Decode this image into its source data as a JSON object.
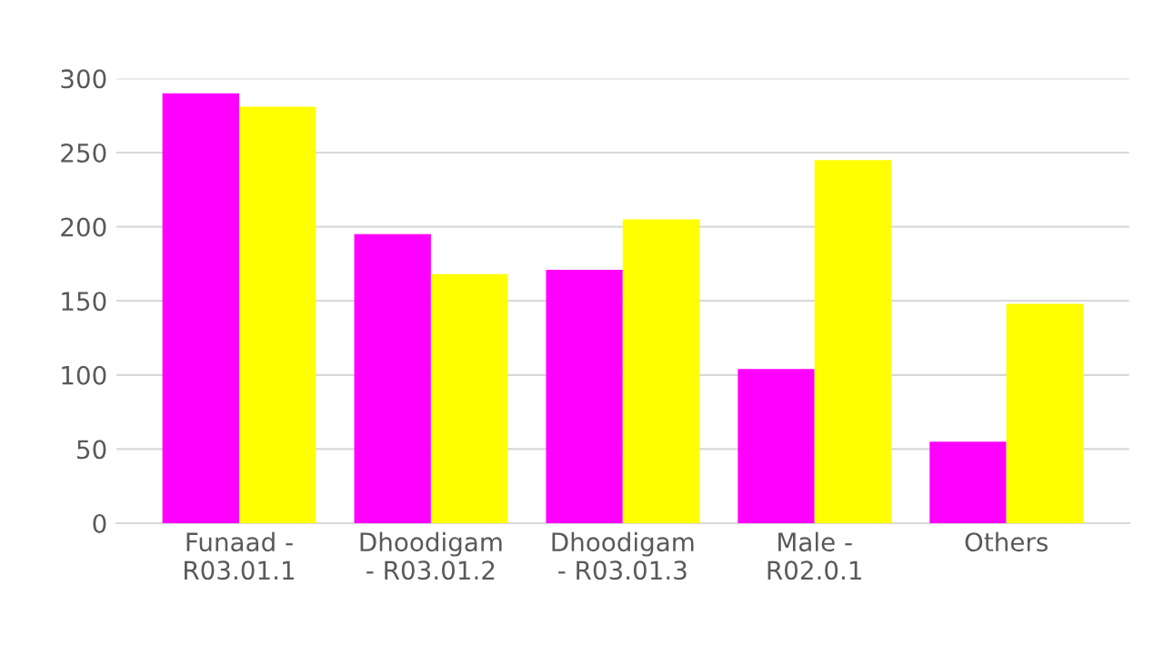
{
  "chart_data": {
    "type": "bar",
    "categories": [
      "Funaad -\nR03.01.1",
      "Dhoodigam\n- R03.01.2",
      "Dhoodigam\n- R03.01.3",
      "Male -\nR02.0.1",
      "Others"
    ],
    "series": [
      {
        "color": "#ff00ff",
        "values": [
          290,
          195,
          171,
          104,
          55
        ]
      },
      {
        "color": "#ffff00",
        "values": [
          281,
          168,
          205,
          245,
          148
        ]
      }
    ],
    "ylim": [
      0,
      300
    ],
    "yticks": [
      0,
      50,
      100,
      150,
      200,
      250,
      300
    ],
    "grid": "y",
    "legend": false
  }
}
